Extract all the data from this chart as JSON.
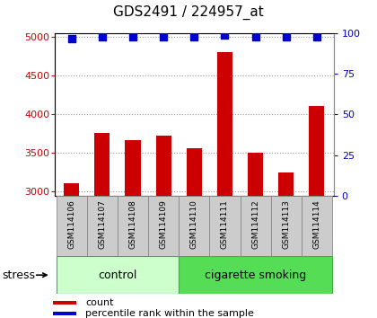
{
  "title": "GDS2491 / 224957_at",
  "samples": [
    "GSM114106",
    "GSM114107",
    "GSM114108",
    "GSM114109",
    "GSM114110",
    "GSM114111",
    "GSM114112",
    "GSM114113",
    "GSM114114"
  ],
  "counts": [
    3110,
    3760,
    3665,
    3730,
    3560,
    4810,
    3510,
    3245,
    4110
  ],
  "percentile_ranks": [
    97,
    98,
    98,
    98,
    98,
    99,
    98,
    98,
    98
  ],
  "ylim_left": [
    2950,
    5050
  ],
  "ylim_right": [
    0,
    100
  ],
  "yticks_left": [
    3000,
    3500,
    4000,
    4500,
    5000
  ],
  "yticks_right": [
    0,
    25,
    50,
    75,
    100
  ],
  "bar_color": "#cc0000",
  "dot_color": "#0000cc",
  "n_control": 4,
  "n_smoking": 5,
  "control_label": "control",
  "smoking_label": "cigarette smoking",
  "stress_label": "stress",
  "legend_count": "count",
  "legend_pct": "percentile rank within the sample",
  "control_color_light": "#ccffcc",
  "smoking_color": "#55dd55",
  "grid_color": "#999999",
  "label_area_color": "#cccccc",
  "label_area_border": "#888888",
  "group_border": "#44aa44",
  "title_fontsize": 11,
  "tick_fontsize": 8,
  "label_fontsize": 6.5,
  "group_fontsize": 9,
  "legend_fontsize": 8,
  "stress_fontsize": 9,
  "dot_size": 28,
  "bar_width": 0.5,
  "xlim": [
    -0.55,
    8.55
  ],
  "pct_display_y": 97.5,
  "bg_color": "#ffffff"
}
